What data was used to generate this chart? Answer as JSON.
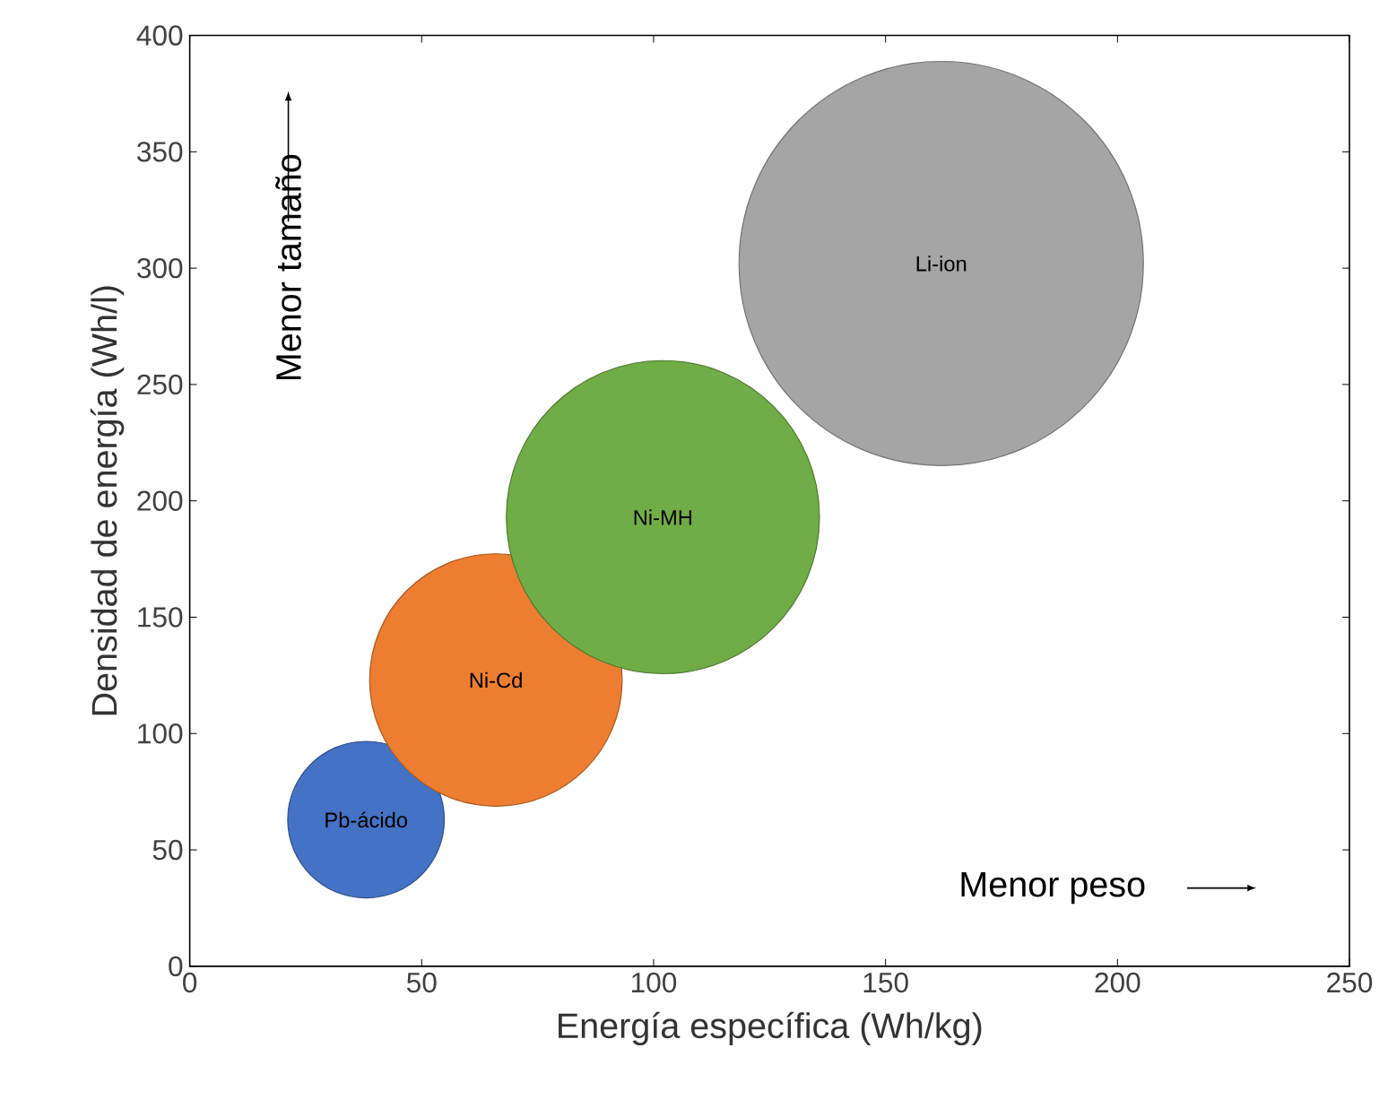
{
  "chart_data": {
    "type": "bubble",
    "xlabel": "Energía específica (Wh/kg)",
    "ylabel": "Densidad de energía (Wh/l)",
    "xlim": [
      0,
      250
    ],
    "xticks": [
      0,
      50,
      100,
      150,
      200,
      250
    ],
    "ylim": [
      0,
      400
    ],
    "yticks": [
      0,
      50,
      100,
      150,
      200,
      250,
      300,
      350,
      400
    ],
    "annotations": [
      "Menor tamaño",
      "Menor peso"
    ],
    "series": [
      {
        "name": "Pb-ácido",
        "color": "#4472c4",
        "x": [
          38
        ],
        "values": [
          63
        ],
        "sizes": [
          0.15
        ]
      },
      {
        "name": "Ni-Cd",
        "color": "#ed7d31",
        "x": [
          66
        ],
        "values": [
          123
        ],
        "sizes": [
          0.39
        ]
      },
      {
        "name": "Ni-MH",
        "color": "#70ad47",
        "x": [
          102
        ],
        "values": [
          193
        ],
        "sizes": [
          0.6
        ]
      },
      {
        "name": "Li-ion",
        "color": "#a5a5a5",
        "x": [
          162
        ],
        "values": [
          302
        ],
        "sizes": [
          1
        ]
      }
    ]
  }
}
